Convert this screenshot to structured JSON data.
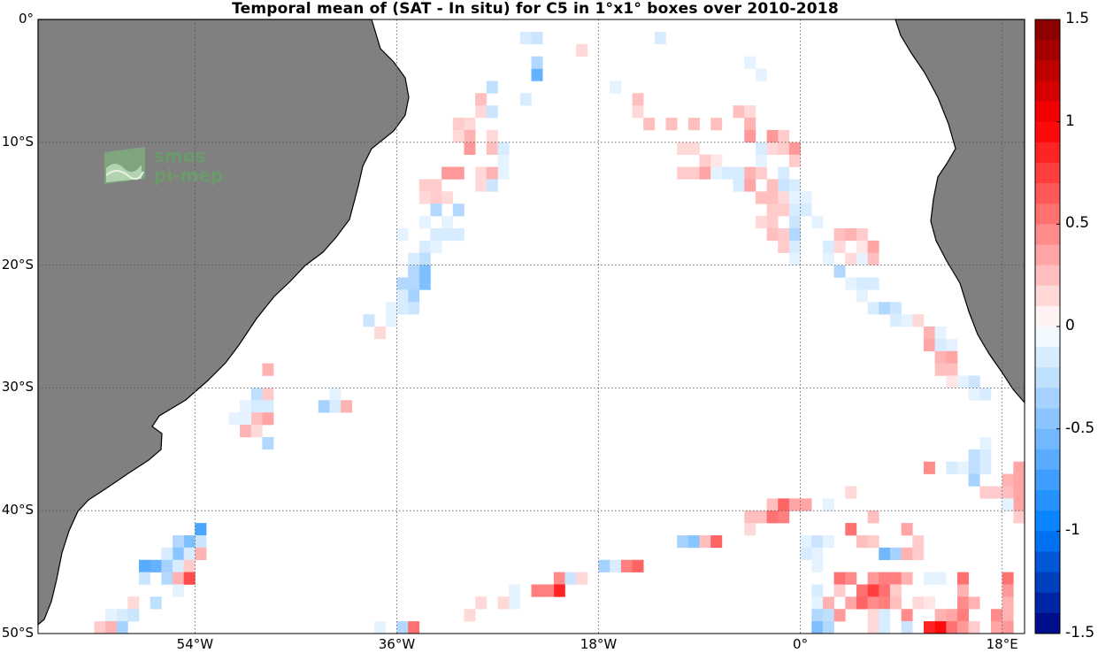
{
  "title": "Temporal mean of (SAT - In situ) for C5 in 1°x1° boxes over 2010-2018",
  "logo": {
    "line1": "smos",
    "line2": "pi-mep",
    "icon": "smos-pimep-logo-icon"
  },
  "colors": {
    "land": "#808080",
    "ocean": "#ffffff",
    "grid": "#555555",
    "coast": "#000000"
  },
  "lat_labels": [
    {
      "value": 0,
      "text": "0°"
    },
    {
      "value": -10,
      "text": "10°S"
    },
    {
      "value": -20,
      "text": "20°S"
    },
    {
      "value": -30,
      "text": "30°S"
    },
    {
      "value": -40,
      "text": "40°S"
    },
    {
      "value": -50,
      "text": "50°S"
    }
  ],
  "lon_labels": [
    {
      "value": -54,
      "text": "54°W"
    },
    {
      "value": -36,
      "text": "36°W"
    },
    {
      "value": -18,
      "text": "18°W"
    },
    {
      "value": 0,
      "text": "0°"
    },
    {
      "value": 18,
      "text": "18°E"
    }
  ],
  "colorbar": {
    "min": -1.5,
    "max": 1.5,
    "steps": 30,
    "ticks": [
      {
        "value": 1.5,
        "text": "1.5"
      },
      {
        "value": 1,
        "text": "1"
      },
      {
        "value": 0.5,
        "text": "0.5"
      },
      {
        "value": 0,
        "text": "0"
      },
      {
        "value": -0.5,
        "text": "-0.5"
      },
      {
        "value": -1,
        "text": "-1"
      },
      {
        "value": -1.5,
        "text": "-1.5"
      }
    ]
  },
  "map_data": {
    "lon_range": [
      -68,
      20
    ],
    "lat_range": [
      -50,
      0
    ],
    "cell_size_deg": 1,
    "cells": [
      [
        -25,
        -1,
        -0.15
      ],
      [
        -24,
        -1,
        -0.2
      ],
      [
        -20,
        -2,
        0.15
      ],
      [
        -13,
        -1,
        -0.15
      ],
      [
        -5,
        -3,
        -0.1
      ],
      [
        -4,
        -4,
        -0.1
      ],
      [
        -24,
        -4,
        -0.6
      ],
      [
        -24,
        -3,
        -0.3
      ],
      [
        -17,
        -5,
        -0.1
      ],
      [
        -25,
        -6,
        -0.15
      ],
      [
        -28,
        -5,
        -0.25
      ],
      [
        -29,
        -6,
        0.25
      ],
      [
        -29,
        -7,
        0.15
      ],
      [
        -28,
        -7,
        -0.2
      ],
      [
        -15,
        -6,
        0.25
      ],
      [
        -15,
        -7,
        0.15
      ],
      [
        -14,
        -8,
        0.25
      ],
      [
        -12,
        -8,
        0.25
      ],
      [
        -10,
        -8,
        0.25
      ],
      [
        -8,
        -8,
        0.25
      ],
      [
        -6,
        -7,
        0.25
      ],
      [
        -5,
        -7,
        0.15
      ],
      [
        -5,
        -8,
        0.3
      ],
      [
        -5,
        -9,
        0.4
      ],
      [
        -31,
        -8,
        0.2
      ],
      [
        -30,
        -8,
        0.15
      ],
      [
        -30,
        -9,
        0.3
      ],
      [
        -31,
        -9,
        0.15
      ],
      [
        -30,
        -10,
        0.4
      ],
      [
        -28,
        -9,
        0.15
      ],
      [
        -28,
        -10,
        0.25
      ],
      [
        -27,
        -10,
        -0.15
      ],
      [
        -27,
        -11,
        -0.1
      ],
      [
        -27,
        -12,
        -0.1
      ],
      [
        -29,
        -12,
        0.15
      ],
      [
        -28,
        -12,
        0.3
      ],
      [
        -28,
        -13,
        -0.2
      ],
      [
        -29,
        -13,
        0.15
      ],
      [
        -31,
        -12,
        0.4
      ],
      [
        -32,
        -12,
        0.4
      ],
      [
        -33,
        -13,
        0.2
      ],
      [
        -33,
        -14,
        0.2
      ],
      [
        -32,
        -14,
        0.15
      ],
      [
        -34,
        -13,
        0.2
      ],
      [
        -34,
        -14,
        0.15
      ],
      [
        -31,
        -15,
        -0.3
      ],
      [
        -33,
        -15,
        -0.3
      ],
      [
        -34,
        -16,
        -0.1
      ],
      [
        -32,
        -16,
        -0.1
      ],
      [
        -32,
        -17,
        -0.15
      ],
      [
        -31,
        -17,
        -0.15
      ],
      [
        -33,
        -17,
        -0.15
      ],
      [
        -34,
        -18,
        -0.15
      ],
      [
        -36,
        -17,
        -0.1
      ],
      [
        -33,
        -18,
        -0.1
      ],
      [
        -34,
        -19,
        -0.25
      ],
      [
        -35,
        -19,
        -0.15
      ],
      [
        -34,
        -20,
        -0.5
      ],
      [
        -35,
        -20,
        -0.3
      ],
      [
        -34,
        -21,
        -0.5
      ],
      [
        -35,
        -21,
        -0.3
      ],
      [
        -36,
        -21,
        -0.3
      ],
      [
        -35,
        -22,
        -0.35
      ],
      [
        -36,
        -22,
        -0.15
      ],
      [
        -35,
        -23,
        -0.2
      ],
      [
        -36,
        -23,
        -0.15
      ],
      [
        -37,
        -23,
        -0.1
      ],
      [
        -37,
        -24,
        -0.1
      ],
      [
        -39,
        -24,
        -0.2
      ],
      [
        -38,
        -25,
        0.15
      ],
      [
        -11,
        -10,
        0.15
      ],
      [
        -10,
        -10,
        0.15
      ],
      [
        -9,
        -11,
        0.2
      ],
      [
        -8,
        -11,
        0.1
      ],
      [
        -11,
        -12,
        0.2
      ],
      [
        -10,
        -12,
        0.2
      ],
      [
        -9,
        -12,
        0.35
      ],
      [
        -8,
        -12,
        -0.1
      ],
      [
        -7,
        -12,
        -0.15
      ],
      [
        -6,
        -12,
        -0.15
      ],
      [
        -6,
        -13,
        -0.15
      ],
      [
        -5,
        -12,
        0.3
      ],
      [
        -5,
        -13,
        0.35
      ],
      [
        -4,
        -12,
        0.2
      ],
      [
        -4,
        -11,
        -0.1
      ],
      [
        -4,
        -10,
        -0.15
      ],
      [
        -3,
        -10,
        0.15
      ],
      [
        -3,
        -9,
        0.4
      ],
      [
        -2,
        -9,
        0.2
      ],
      [
        -2,
        -10,
        0.2
      ],
      [
        -1,
        -10,
        0.4
      ],
      [
        -1,
        -11,
        0.2
      ],
      [
        -2,
        -12,
        -0.15
      ],
      [
        -2,
        -13,
        -0.2
      ],
      [
        -1,
        -13,
        -0.15
      ],
      [
        -3,
        -13,
        0.25
      ],
      [
        -4,
        -14,
        0.25
      ],
      [
        -3,
        -14,
        0.25
      ],
      [
        -3,
        -15,
        0.2
      ],
      [
        -2,
        -14,
        0.15
      ],
      [
        -1,
        -15,
        -0.15
      ],
      [
        -1,
        -16,
        -0.2
      ],
      [
        -1,
        -14,
        -0.1
      ],
      [
        -2,
        -15,
        0.2
      ],
      [
        -4,
        -16,
        0.15
      ],
      [
        -3,
        -16,
        0.2
      ],
      [
        -2,
        -17,
        0.2
      ],
      [
        -3,
        -17,
        0.25
      ],
      [
        -1,
        -17,
        -0.3
      ],
      [
        -1,
        -18,
        -0.15
      ],
      [
        -1,
        -19,
        -0.1
      ],
      [
        -2,
        -18,
        0.2
      ],
      [
        0,
        -14,
        -0.1
      ],
      [
        0,
        -15,
        -0.15
      ],
      [
        1,
        -16,
        -0.1
      ],
      [
        2,
        -18,
        -0.15
      ],
      [
        2,
        -19,
        -0.1
      ],
      [
        3,
        -17,
        0.25
      ],
      [
        3,
        -18,
        0.15
      ],
      [
        4,
        -17,
        0.3
      ],
      [
        5,
        -17,
        0.2
      ],
      [
        5,
        -18,
        0.1
      ],
      [
        4,
        -19,
        0.15
      ],
      [
        5,
        -19,
        -0.1
      ],
      [
        6,
        -18,
        0.35
      ],
      [
        6,
        -19,
        0.25
      ],
      [
        3,
        -20,
        -0.3
      ],
      [
        4,
        -21,
        -0.1
      ],
      [
        5,
        -21,
        -0.15
      ],
      [
        6,
        -21,
        -0.15
      ],
      [
        5,
        -22,
        -0.1
      ],
      [
        6,
        -23,
        -0.15
      ],
      [
        7,
        -23,
        -0.3
      ],
      [
        8,
        -23,
        -0.2
      ],
      [
        8,
        -24,
        -0.15
      ],
      [
        9,
        -24,
        -0.1
      ],
      [
        10,
        -24,
        0.15
      ],
      [
        11,
        -25,
        0.3
      ],
      [
        11,
        -26,
        0.35
      ],
      [
        12,
        -25,
        -0.1
      ],
      [
        12,
        -26,
        -0.15
      ],
      [
        12,
        -27,
        0.3
      ],
      [
        13,
        -26,
        -0.1
      ],
      [
        13,
        -27,
        0.35
      ],
      [
        12,
        -28,
        0.25
      ],
      [
        13,
        -28,
        0.25
      ],
      [
        13,
        -29,
        0.1
      ],
      [
        14,
        -29,
        -0.1
      ],
      [
        15,
        -29,
        -0.2
      ],
      [
        15,
        -30,
        -0.1
      ],
      [
        16,
        -30,
        -0.15
      ],
      [
        15,
        -35,
        -0.25
      ],
      [
        16,
        -35,
        -0.15
      ],
      [
        16,
        -34,
        -0.1
      ],
      [
        14,
        -36,
        -0.1
      ],
      [
        15,
        -36,
        -0.25
      ],
      [
        16,
        -36,
        -0.15
      ],
      [
        13,
        -36,
        -0.15
      ],
      [
        11,
        -36,
        0.45
      ],
      [
        15,
        -37,
        -0.35
      ],
      [
        16,
        -38,
        0.2
      ],
      [
        17,
        -38,
        0.2
      ],
      [
        18,
        -38,
        0.25
      ],
      [
        18,
        -37,
        0.3
      ],
      [
        19,
        -36,
        0.35
      ],
      [
        19,
        -37,
        0.35
      ],
      [
        19,
        -38,
        0.35
      ],
      [
        19,
        -39,
        0.35
      ],
      [
        18,
        -39,
        -0.1
      ],
      [
        19,
        -40,
        0.2
      ],
      [
        -48,
        -28,
        0.3
      ],
      [
        -48,
        -30,
        0.2
      ],
      [
        -49,
        -30,
        -0.25
      ],
      [
        -48,
        -31,
        -0.15
      ],
      [
        -49,
        -31,
        -0.15
      ],
      [
        -50,
        -31,
        -0.1
      ],
      [
        -49,
        -32,
        0.25
      ],
      [
        -48,
        -32,
        0.35
      ],
      [
        -50,
        -32,
        -0.1
      ],
      [
        -51,
        -32,
        -0.1
      ],
      [
        -50,
        -33,
        0.3
      ],
      [
        -49,
        -33,
        0.15
      ],
      [
        -48,
        -34,
        -0.3
      ],
      [
        -42,
        -30,
        -0.1
      ],
      [
        -43,
        -31,
        -0.35
      ],
      [
        -42,
        -31,
        -0.15
      ],
      [
        -41,
        -31,
        0.3
      ],
      [
        -54,
        -41,
        -0.7
      ],
      [
        -55,
        -42,
        -0.5
      ],
      [
        -56,
        -42,
        -0.3
      ],
      [
        -54,
        -42,
        -0.2
      ],
      [
        -56,
        -43,
        -0.45
      ],
      [
        -57,
        -43,
        -0.15
      ],
      [
        -55,
        -43,
        -0.15
      ],
      [
        -54,
        -43,
        0.3
      ],
      [
        -58,
        -44,
        -0.6
      ],
      [
        -59,
        -44,
        -0.65
      ],
      [
        -57,
        -44,
        -0.35
      ],
      [
        -56,
        -44,
        -0.15
      ],
      [
        -55,
        -44,
        0.2
      ],
      [
        -59,
        -45,
        -0.2
      ],
      [
        -57,
        -45,
        -0.3
      ],
      [
        -56,
        -45,
        0.3
      ],
      [
        -55,
        -45,
        0.7
      ],
      [
        -56,
        -46,
        -0.1
      ],
      [
        -58,
        -47,
        -0.25
      ],
      [
        -60,
        -47,
        0.15
      ],
      [
        -61,
        -48,
        -0.15
      ],
      [
        -62,
        -48,
        -0.1
      ],
      [
        -60,
        -48,
        -0.2
      ],
      [
        -61,
        -49,
        -0.35
      ],
      [
        -62,
        -49,
        0.3
      ],
      [
        -63,
        -49,
        0.2
      ],
      [
        -38,
        -49,
        -0.1
      ],
      [
        -36,
        -49,
        -0.3
      ],
      [
        -35,
        -49,
        0.55
      ],
      [
        -22,
        -45,
        0.45
      ],
      [
        -21,
        -45,
        -0.2
      ],
      [
        -20,
        -45,
        0.15
      ],
      [
        -22,
        -46,
        0.85
      ],
      [
        -23,
        -46,
        0.5
      ],
      [
        -24,
        -46,
        0.5
      ],
      [
        -26,
        -46,
        -0.1
      ],
      [
        -26,
        -47,
        -0.1
      ],
      [
        -27,
        -47,
        0.15
      ],
      [
        -29,
        -47,
        0.15
      ],
      [
        -30,
        -48,
        0.15
      ],
      [
        -18,
        -44,
        -0.35
      ],
      [
        -17,
        -44,
        -0.15
      ],
      [
        -16,
        -44,
        0.5
      ],
      [
        -15,
        -44,
        0.6
      ],
      [
        -11,
        -42,
        -0.35
      ],
      [
        -10,
        -42,
        -0.45
      ],
      [
        -9,
        -42,
        0.25
      ],
      [
        -8,
        -42,
        0.6
      ],
      [
        -5,
        -40,
        0.25
      ],
      [
        -4,
        -40,
        0.25
      ],
      [
        -5,
        -41,
        0.15
      ],
      [
        -3,
        -39,
        0.25
      ],
      [
        -3,
        -40,
        0.55
      ],
      [
        -2,
        -39,
        0.6
      ],
      [
        -2,
        -40,
        0.5
      ],
      [
        -1,
        -39,
        0.35
      ],
      [
        0,
        -39,
        0.35
      ],
      [
        2,
        -39,
        -0.1
      ],
      [
        4,
        -38,
        0.15
      ],
      [
        6,
        -40,
        0.25
      ],
      [
        4,
        -41,
        0.55
      ],
      [
        9,
        -41,
        0.35
      ],
      [
        10,
        -42,
        0.2
      ],
      [
        0,
        -42,
        -0.1
      ],
      [
        0,
        -43,
        -0.15
      ],
      [
        1,
        -42,
        -0.2
      ],
      [
        1,
        -43,
        -0.1
      ],
      [
        2,
        -42,
        -0.1
      ],
      [
        5,
        -42,
        0.25
      ],
      [
        6,
        -42,
        0.2
      ],
      [
        7,
        -43,
        -0.55
      ],
      [
        8,
        -43,
        -0.35
      ],
      [
        9,
        -43,
        0.3
      ],
      [
        10,
        -43,
        0.2
      ],
      [
        1,
        -44,
        -0.1
      ],
      [
        3,
        -45,
        0.55
      ],
      [
        4,
        -45,
        0.45
      ],
      [
        6,
        -45,
        0.4
      ],
      [
        7,
        -45,
        0.5
      ],
      [
        8,
        -45,
        0.5
      ],
      [
        9,
        -45,
        0.3
      ],
      [
        11,
        -45,
        -0.1
      ],
      [
        12,
        -45,
        -0.1
      ],
      [
        1,
        -46,
        -0.15
      ],
      [
        3,
        -46,
        0.2
      ],
      [
        5,
        -46,
        0.55
      ],
      [
        6,
        -46,
        0.75
      ],
      [
        7,
        -46,
        0.55
      ],
      [
        8,
        -46,
        0.2
      ],
      [
        1,
        -47,
        -0.1
      ],
      [
        2,
        -47,
        0.3
      ],
      [
        4,
        -47,
        0.35
      ],
      [
        5,
        -47,
        0.6
      ],
      [
        6,
        -47,
        0.45
      ],
      [
        7,
        -47,
        0.5
      ],
      [
        8,
        -47,
        0.25
      ],
      [
        10,
        -47,
        0.15
      ],
      [
        11,
        -47,
        0.1
      ],
      [
        14,
        -45,
        0.55
      ],
      [
        14,
        -46,
        0.3
      ],
      [
        14,
        -47,
        0.45
      ],
      [
        15,
        -47,
        0.3
      ],
      [
        18,
        -45,
        0.55
      ],
      [
        18,
        -46,
        0.4
      ],
      [
        18,
        -47,
        0.3
      ],
      [
        1,
        -48,
        -0.3
      ],
      [
        2,
        -48,
        -0.25
      ],
      [
        3,
        -48,
        0.4
      ],
      [
        6,
        -48,
        0.15
      ],
      [
        7,
        -48,
        -0.15
      ],
      [
        9,
        -48,
        0.45
      ],
      [
        12,
        -48,
        0.3
      ],
      [
        13,
        -48,
        0.35
      ],
      [
        14,
        -48,
        0.5
      ],
      [
        17,
        -48,
        0.45
      ],
      [
        18,
        -48,
        0.3
      ],
      [
        1,
        -49,
        -0.5
      ],
      [
        2,
        -49,
        -0.3
      ],
      [
        6,
        -49,
        0.15
      ],
      [
        7,
        -49,
        -0.15
      ],
      [
        9,
        -49,
        -0.2
      ],
      [
        11,
        -49,
        0.85
      ],
      [
        12,
        -49,
        0.95
      ],
      [
        13,
        -49,
        0.55
      ],
      [
        14,
        -49,
        0.4
      ],
      [
        15,
        -49,
        0.2
      ],
      [
        17,
        -49,
        0.35
      ],
      [
        18,
        -49,
        0.4
      ]
    ]
  }
}
